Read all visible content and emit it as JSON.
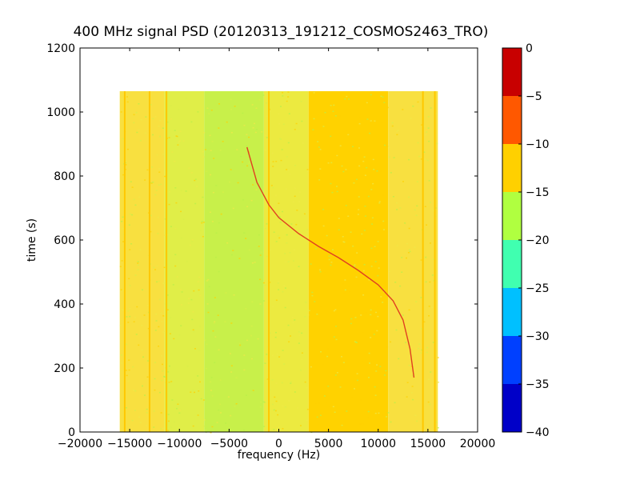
{
  "chart_data": {
    "type": "heatmap",
    "title": "400 MHz signal PSD (20120313_191212_COSMOS2463_TRO)",
    "xlabel": "frequency (Hz)",
    "ylabel": "time (s)",
    "xlim": [
      -20000,
      20000
    ],
    "ylim": [
      0,
      1200
    ],
    "xticks": [
      -20000,
      -15000,
      -10000,
      -5000,
      0,
      5000,
      10000,
      15000,
      20000
    ],
    "xtick_labels": [
      "−20000",
      "−15000",
      "−10000",
      "−5000",
      "0",
      "5000",
      "10000",
      "15000",
      "20000"
    ],
    "yticks": [
      0,
      200,
      400,
      600,
      800,
      1000,
      1200
    ],
    "ytick_labels": [
      "0",
      "200",
      "400",
      "600",
      "800",
      "1000",
      "1200"
    ],
    "data_extent": {
      "x": [
        -16000,
        16000
      ],
      "y": [
        0,
        1065
      ]
    },
    "colorbar": {
      "min": -40,
      "max": 0,
      "levels": [
        -40,
        -35,
        -30,
        -25,
        -20,
        -15,
        -10,
        -5,
        0
      ],
      "tick_labels": [
        "−40",
        "−35",
        "−30",
        "−25",
        "−20",
        "−15",
        "−10",
        "−5",
        "0"
      ],
      "colors": [
        "#0000c8",
        "#0040ff",
        "#00c0ff",
        "#40ffb0",
        "#b0ff40",
        "#ffd000",
        "#ff5800",
        "#c80000"
      ]
    },
    "background_bands": [
      {
        "x": [
          -16000,
          -11500
        ],
        "level_color": "#f8e040"
      },
      {
        "x": [
          -11500,
          -7500
        ],
        "level_color": "#e0ee48"
      },
      {
        "x": [
          -7500,
          -1500
        ],
        "level_color": "#c8f04a"
      },
      {
        "x": [
          -1500,
          3000
        ],
        "level_color": "#ecea40"
      },
      {
        "x": [
          3000,
          11000
        ],
        "level_color": "#ffd200"
      },
      {
        "x": [
          11000,
          16000
        ],
        "level_color": "#f8e040"
      }
    ],
    "vertical_lines_x": [
      -15500,
      -13000,
      -11300,
      -1000,
      14500,
      15700
    ],
    "signal_track": {
      "color": "#e04020",
      "points": [
        [
          -3200,
          890
        ],
        [
          -2200,
          780
        ],
        [
          -1000,
          710
        ],
        [
          0,
          670
        ],
        [
          2000,
          620
        ],
        [
          4000,
          580
        ],
        [
          6000,
          545
        ],
        [
          8000,
          505
        ],
        [
          10000,
          460
        ],
        [
          11500,
          410
        ],
        [
          12500,
          350
        ],
        [
          13200,
          260
        ],
        [
          13600,
          170
        ]
      ]
    }
  }
}
